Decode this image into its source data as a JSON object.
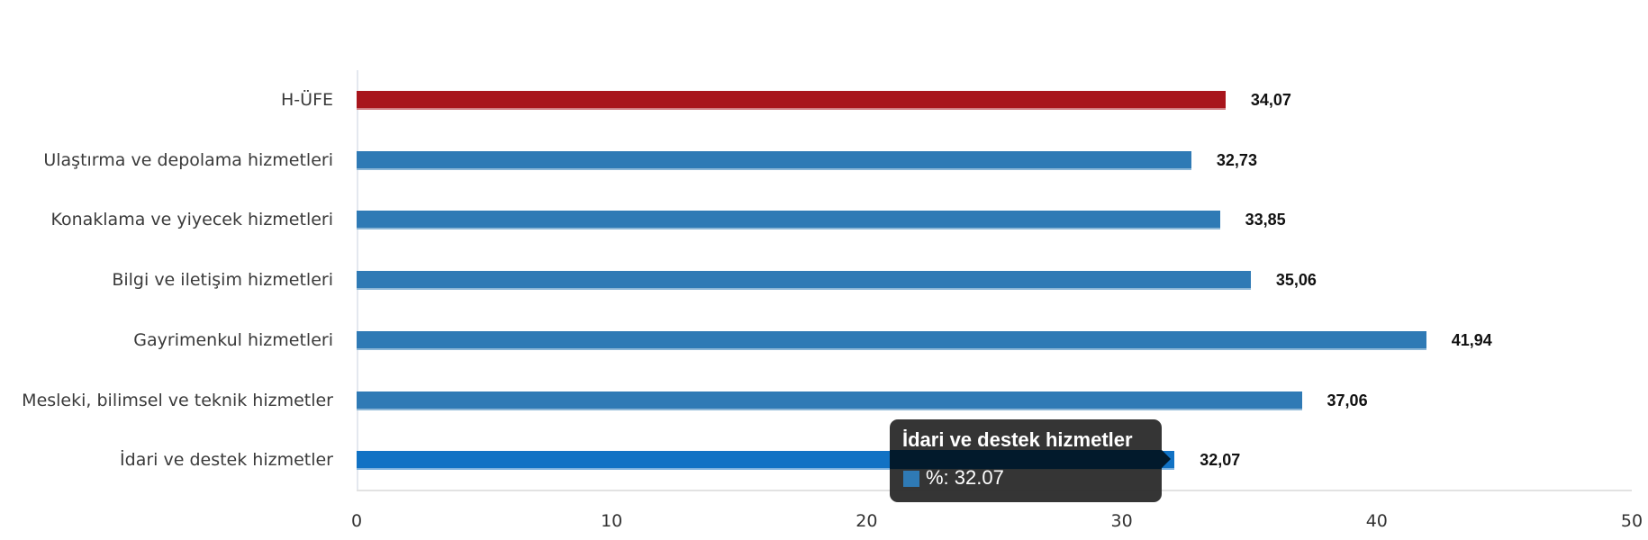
{
  "chart_data": {
    "type": "bar",
    "orientation": "horizontal",
    "title": "",
    "xlabel": "",
    "ylabel": "",
    "xlim": [
      0,
      50
    ],
    "x_ticks": [
      "0",
      "10",
      "20",
      "30",
      "40",
      "50"
    ],
    "grid": false,
    "legend": null,
    "categories": [
      "H-ÜFE",
      "Ulaştırma ve depolama hizmetleri",
      "Konaklama ve yiyecek hizmetleri",
      "Bilgi ve iletişim hizmetleri",
      "Gayrimenkul hizmetleri",
      "Mesleki, bilimsel ve teknik hizmetler",
      "İdari ve destek hizmetler"
    ],
    "values": [
      34.07,
      32.73,
      33.85,
      35.06,
      41.94,
      37.06,
      32.07
    ],
    "value_labels": [
      "34,07",
      "32,73",
      "33,85",
      "35,06",
      "41,94",
      "37,06",
      "32,07"
    ],
    "colors": [
      "#a8151c",
      "#2f7ab5",
      "#2f7ab5",
      "#2f7ab5",
      "#2f7ab5",
      "#2f7ab5",
      "#1172c4"
    ],
    "highlighted_index": 6
  },
  "tooltip": {
    "title": "İdari ve destek hizmetler",
    "series_label": "%: 32.07",
    "swatch_color": "#2f7ab5"
  }
}
